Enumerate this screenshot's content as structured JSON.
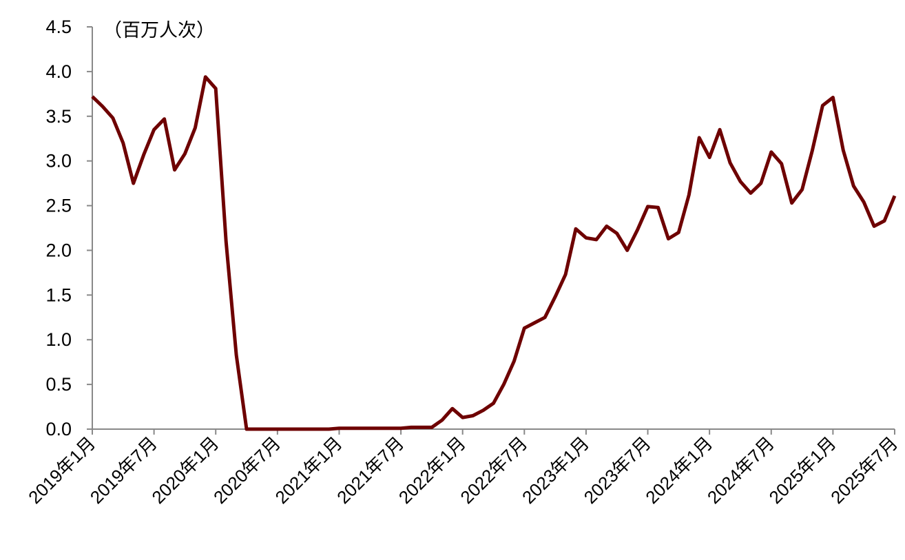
{
  "chart_data": {
    "type": "line",
    "title": "",
    "ylabel": "（百万人次）",
    "xlabel": "",
    "ylim": [
      0,
      4.5
    ],
    "yticks": [
      "0.0",
      "0.5",
      "1.0",
      "1.5",
      "2.0",
      "2.5",
      "3.0",
      "3.5",
      "4.0",
      "4.5"
    ],
    "grid": false,
    "legend": "none",
    "color": "#6e0000",
    "xtick_labels": [
      "2019年1月",
      "2019年7月",
      "2020年1月",
      "2020年7月",
      "2021年1月",
      "2021年7月",
      "2022年1月",
      "2022年7月",
      "2023年1月",
      "2023年7月",
      "2024年1月",
      "2024年7月",
      "2025年1月",
      "2025年7月"
    ],
    "x": [
      "2019年1月",
      "2019年2月",
      "2019年3月",
      "2019年4月",
      "2019年5月",
      "2019年6月",
      "2019年7月",
      "2019年8月",
      "2019年9月",
      "2019年10月",
      "2019年11月",
      "2019年12月",
      "2020年1月",
      "2020年2月",
      "2020年3月",
      "2020年4月",
      "2020年5月",
      "2020年6月",
      "2020年7月",
      "2020年8月",
      "2020年9月",
      "2020年10月",
      "2020年11月",
      "2020年12月",
      "2021年1月",
      "2021年2月",
      "2021年3月",
      "2021年4月",
      "2021年5月",
      "2021年6月",
      "2021年7月",
      "2021年8月",
      "2021年9月",
      "2021年10月",
      "2021年11月",
      "2021年12月",
      "2022年1月",
      "2022年2月",
      "2022年3月",
      "2022年4月",
      "2022年5月",
      "2022年6月",
      "2022年7月",
      "2022年8月",
      "2022年9月",
      "2022年10月",
      "2022年11月",
      "2022年12月",
      "2023年1月",
      "2023年2月",
      "2023年3月",
      "2023年4月",
      "2023年5月",
      "2023年6月",
      "2023年7月",
      "2023年8月",
      "2023年9月",
      "2023年10月",
      "2023年11月",
      "2023年12月",
      "2024年1月",
      "2024年2月",
      "2024年3月",
      "2024年4月",
      "2024年5月",
      "2024年6月",
      "2024年7月",
      "2024年8月",
      "2024年9月",
      "2024年10月",
      "2024年11月",
      "2024年12月",
      "2025年1月",
      "2025年2月",
      "2025年3月",
      "2025年4月",
      "2025年5月",
      "2025年6月",
      "2025年7月"
    ],
    "series": [
      {
        "values": [
          3.72,
          3.61,
          3.48,
          3.2,
          2.75,
          3.07,
          3.35,
          3.47,
          2.9,
          3.08,
          3.37,
          3.94,
          3.81,
          2.1,
          0.83,
          0.0,
          0.0,
          0.0,
          0.0,
          0.0,
          0.0,
          0.0,
          0.0,
          0.0,
          0.01,
          0.01,
          0.01,
          0.01,
          0.01,
          0.01,
          0.01,
          0.02,
          0.02,
          0.02,
          0.1,
          0.23,
          0.13,
          0.15,
          0.21,
          0.29,
          0.5,
          0.76,
          1.13,
          1.19,
          1.25,
          1.48,
          1.73,
          2.24,
          2.14,
          2.12,
          2.27,
          2.19,
          2.0,
          2.23,
          2.49,
          2.48,
          2.13,
          2.2,
          2.62,
          3.26,
          3.04,
          3.35,
          2.98,
          2.77,
          2.64,
          2.75,
          3.1,
          2.97,
          2.53,
          2.68,
          3.12,
          3.62,
          3.71,
          3.12,
          2.72,
          2.54,
          2.27,
          2.33,
          2.61
        ]
      }
    ]
  }
}
